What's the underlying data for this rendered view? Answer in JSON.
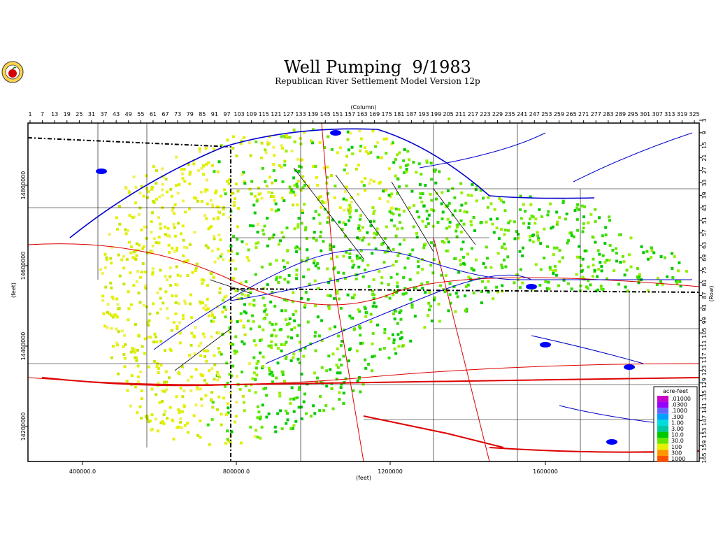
{
  "header": {
    "title": "Well Pumping  9/1983",
    "subtitle": "Republican River Settlement Model Version 12p"
  },
  "axes": {
    "column_label": "(Column)",
    "row_label": "(Row)",
    "x_label": "(feet)",
    "y_label": "(feet)",
    "columns": [
      "1",
      "7",
      "13",
      "19",
      "25",
      "31",
      "37",
      "43",
      "49",
      "55",
      "61",
      "67",
      "73",
      "79",
      "85",
      "91",
      "97",
      "103",
      "109",
      "115",
      "121",
      "127",
      "133",
      "139",
      "145",
      "151",
      "157",
      "163",
      "169",
      "175",
      "181",
      "187",
      "193",
      "199",
      "205",
      "211",
      "217",
      "223",
      "229",
      "235",
      "241",
      "247",
      "253",
      "259",
      "265",
      "271",
      "277",
      "283",
      "289",
      "295",
      "301",
      "307",
      "313",
      "319",
      "325"
    ],
    "rows": [
      "3",
      "9",
      "15",
      "21",
      "27",
      "33",
      "39",
      "45",
      "51",
      "57",
      "63",
      "69",
      "75",
      "81",
      "87",
      "93",
      "99",
      "105",
      "111",
      "117",
      "123",
      "129",
      "135",
      "141",
      "147",
      "153",
      "159",
      "165"
    ],
    "x_ticks": [
      "400000.0",
      "800000.0",
      "1200000",
      "1600000"
    ],
    "y_ticks": [
      "14800000",
      "14600000",
      "14400000",
      "14200000"
    ]
  },
  "legend": {
    "title": "acre-feet",
    "entries": [
      ".01000",
      ".0300",
      ".1000",
      ".300",
      "1.00",
      "3.00",
      "10.0",
      "30.0",
      "100",
      "300",
      "1000"
    ]
  }
}
